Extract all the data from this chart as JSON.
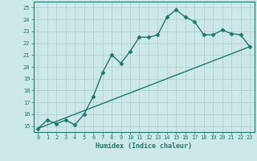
{
  "xlabel": "Humidex (Indice chaleur)",
  "ylabel": "",
  "background_color": "#cce8e8",
  "grid_color": "#b0cccc",
  "line_color": "#1a7a6e",
  "xlim": [
    -0.5,
    23.5
  ],
  "ylim": [
    14.5,
    25.5
  ],
  "x_ticks": [
    0,
    1,
    2,
    3,
    4,
    5,
    6,
    7,
    8,
    9,
    10,
    11,
    12,
    13,
    14,
    15,
    16,
    17,
    18,
    19,
    20,
    21,
    22,
    23
  ],
  "y_ticks": [
    15,
    16,
    17,
    18,
    19,
    20,
    21,
    22,
    23,
    24,
    25
  ],
  "curve1_x": [
    0,
    1,
    2,
    3,
    4,
    5,
    6,
    7,
    8,
    9,
    10,
    11,
    12,
    13,
    14,
    15,
    16,
    17,
    18,
    19,
    20,
    21,
    22,
    23
  ],
  "curve1_y": [
    14.8,
    15.5,
    15.2,
    15.5,
    15.1,
    16.0,
    17.5,
    19.5,
    21.0,
    20.3,
    21.3,
    22.5,
    22.5,
    22.7,
    24.2,
    24.8,
    24.2,
    23.8,
    22.7,
    22.7,
    23.1,
    22.8,
    22.7,
    21.7
  ],
  "curve2_x": [
    0,
    23
  ],
  "curve2_y": [
    14.8,
    21.7
  ],
  "marker": "D",
  "markersize": 2.5,
  "linewidth": 1.0
}
